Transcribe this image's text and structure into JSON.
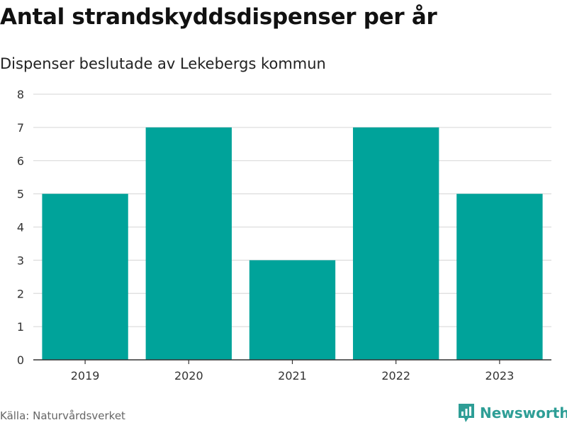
{
  "header": {
    "title": "Antal strandskyddsdispenser per år",
    "subtitle": "Dispenser beslutade av Lekebergs kommun"
  },
  "footer": {
    "source": "Källa: Naturvårdsverket",
    "brand": "Newsworthy"
  },
  "colors": {
    "bar": "#00a39a",
    "grid": "#dddddd",
    "axis": "#333333",
    "brand": "#2e9e96"
  },
  "chart_data": {
    "type": "bar",
    "title": "Antal strandskyddsdispenser per år",
    "subtitle": "Dispenser beslutade av Lekebergs kommun",
    "categories": [
      "2019",
      "2020",
      "2021",
      "2022",
      "2023"
    ],
    "values": [
      5,
      7,
      3,
      7,
      5
    ],
    "xlabel": "",
    "ylabel": "",
    "ylim": [
      0,
      8
    ],
    "yticks": [
      "0",
      "1",
      "2",
      "3",
      "4",
      "5",
      "6",
      "7",
      "8"
    ],
    "grid": true,
    "legend": "none"
  }
}
